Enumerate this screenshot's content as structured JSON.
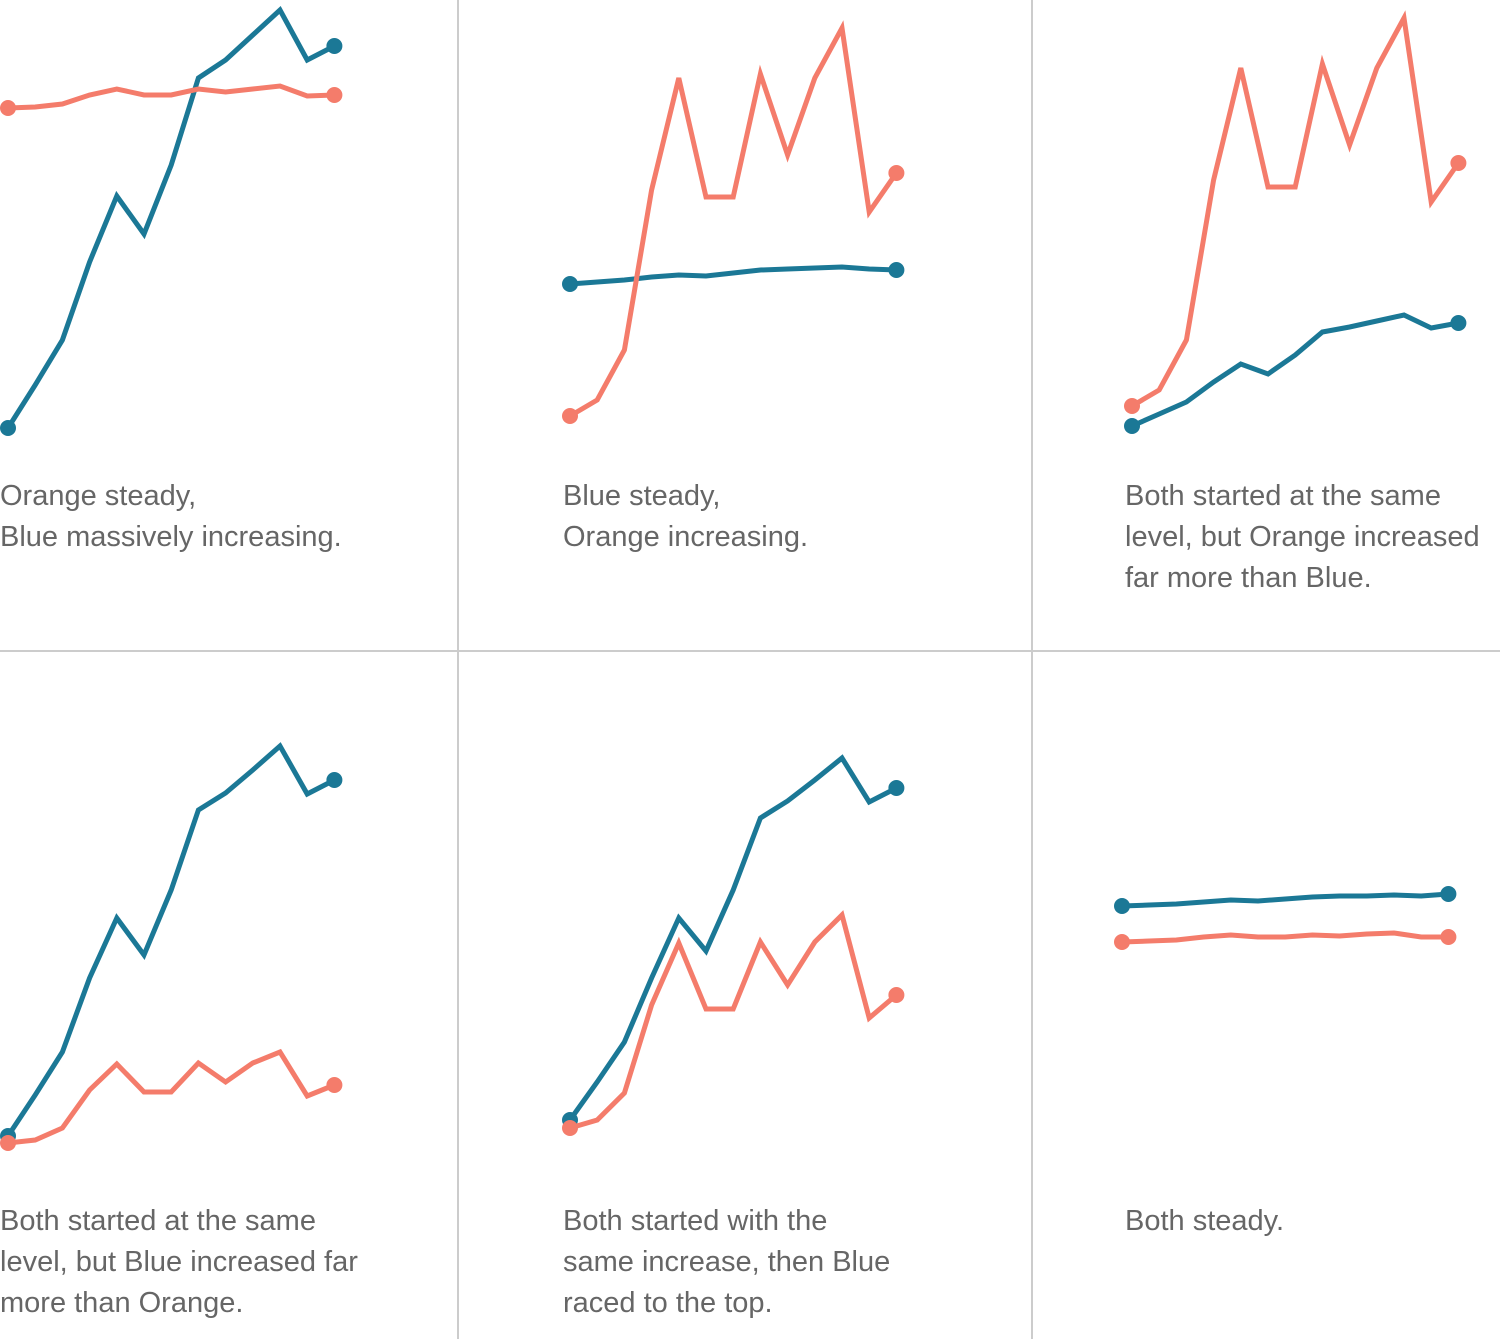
{
  "chart_data": [
    {
      "type": "line",
      "ylim": [
        0,
        430
      ],
      "caption": [
        "Orange steady,",
        "Blue massively increasing."
      ],
      "series": [
        {
          "color": "#1b7896",
          "values": [
            2,
            45,
            90,
            168,
            234,
            196,
            265,
            352,
            370,
            395,
            420,
            370,
            384
          ]
        },
        {
          "color": "#f47c6b",
          "values": [
            322,
            323,
            326,
            335,
            341,
            335,
            335,
            341,
            338,
            341,
            344,
            334,
            335
          ]
        }
      ]
    },
    {
      "type": "line",
      "ylim": [
        0,
        430
      ],
      "caption": [
        "Blue steady,",
        "Orange increasing."
      ],
      "series": [
        {
          "color": "#1b7896",
          "values": [
            146,
            148,
            150,
            153,
            155,
            154,
            157,
            160,
            161,
            162,
            163,
            161,
            160
          ]
        },
        {
          "color": "#f47c6b",
          "values": [
            14,
            30,
            80,
            240,
            352,
            233,
            233,
            356,
            275,
            352,
            402,
            218,
            257
          ]
        }
      ]
    },
    {
      "type": "line",
      "ylim": [
        0,
        430
      ],
      "caption": [
        "Both started at the same",
        "level, but Orange increased",
        "far more than Blue."
      ],
      "series": [
        {
          "color": "#1b7896",
          "values": [
            4,
            16,
            28,
            48,
            66,
            56,
            75,
            98,
            103,
            109,
            115,
            102,
            107
          ]
        },
        {
          "color": "#f47c6b",
          "values": [
            24,
            40,
            90,
            250,
            362,
            243,
            243,
            366,
            285,
            362,
            412,
            228,
            267
          ]
        }
      ]
    },
    {
      "type": "line",
      "ylim": [
        0,
        430
      ],
      "caption": [
        "Both started at the same",
        "level, but Blue increased far",
        "more than Orange."
      ],
      "series": [
        {
          "color": "#1b7896",
          "values": [
            19,
            60,
            103,
            177,
            237,
            200,
            265,
            345,
            362,
            385,
            409,
            361,
            375
          ]
        },
        {
          "color": "#f47c6b",
          "values": [
            12,
            15,
            27,
            65,
            91,
            63,
            63,
            92,
            73,
            92,
            103,
            59,
            70
          ]
        }
      ]
    },
    {
      "type": "line",
      "ylim": [
        0,
        430
      ],
      "caption": [
        "Both started with the",
        "same increase, then Blue",
        "raced to the top."
      ],
      "series": [
        {
          "color": "#1b7896",
          "values": [
            35,
            73,
            113,
            177,
            237,
            204,
            265,
            337,
            354,
            375,
            397,
            353,
            367
          ]
        },
        {
          "color": "#f47c6b",
          "values": [
            27,
            35,
            62,
            150,
            212,
            146,
            146,
            213,
            170,
            213,
            240,
            137,
            160
          ]
        }
      ]
    },
    {
      "type": "line",
      "ylim": [
        0,
        430
      ],
      "caption": [
        "Both steady."
      ],
      "series": [
        {
          "color": "#1b7896",
          "values": [
            249,
            250,
            251,
            253,
            255,
            254,
            256,
            258,
            259,
            259,
            260,
            259,
            261
          ]
        },
        {
          "color": "#f47c6b",
          "values": [
            213,
            214,
            215,
            218,
            220,
            218,
            218,
            220,
            219,
            221,
            222,
            218,
            218
          ]
        }
      ]
    }
  ]
}
